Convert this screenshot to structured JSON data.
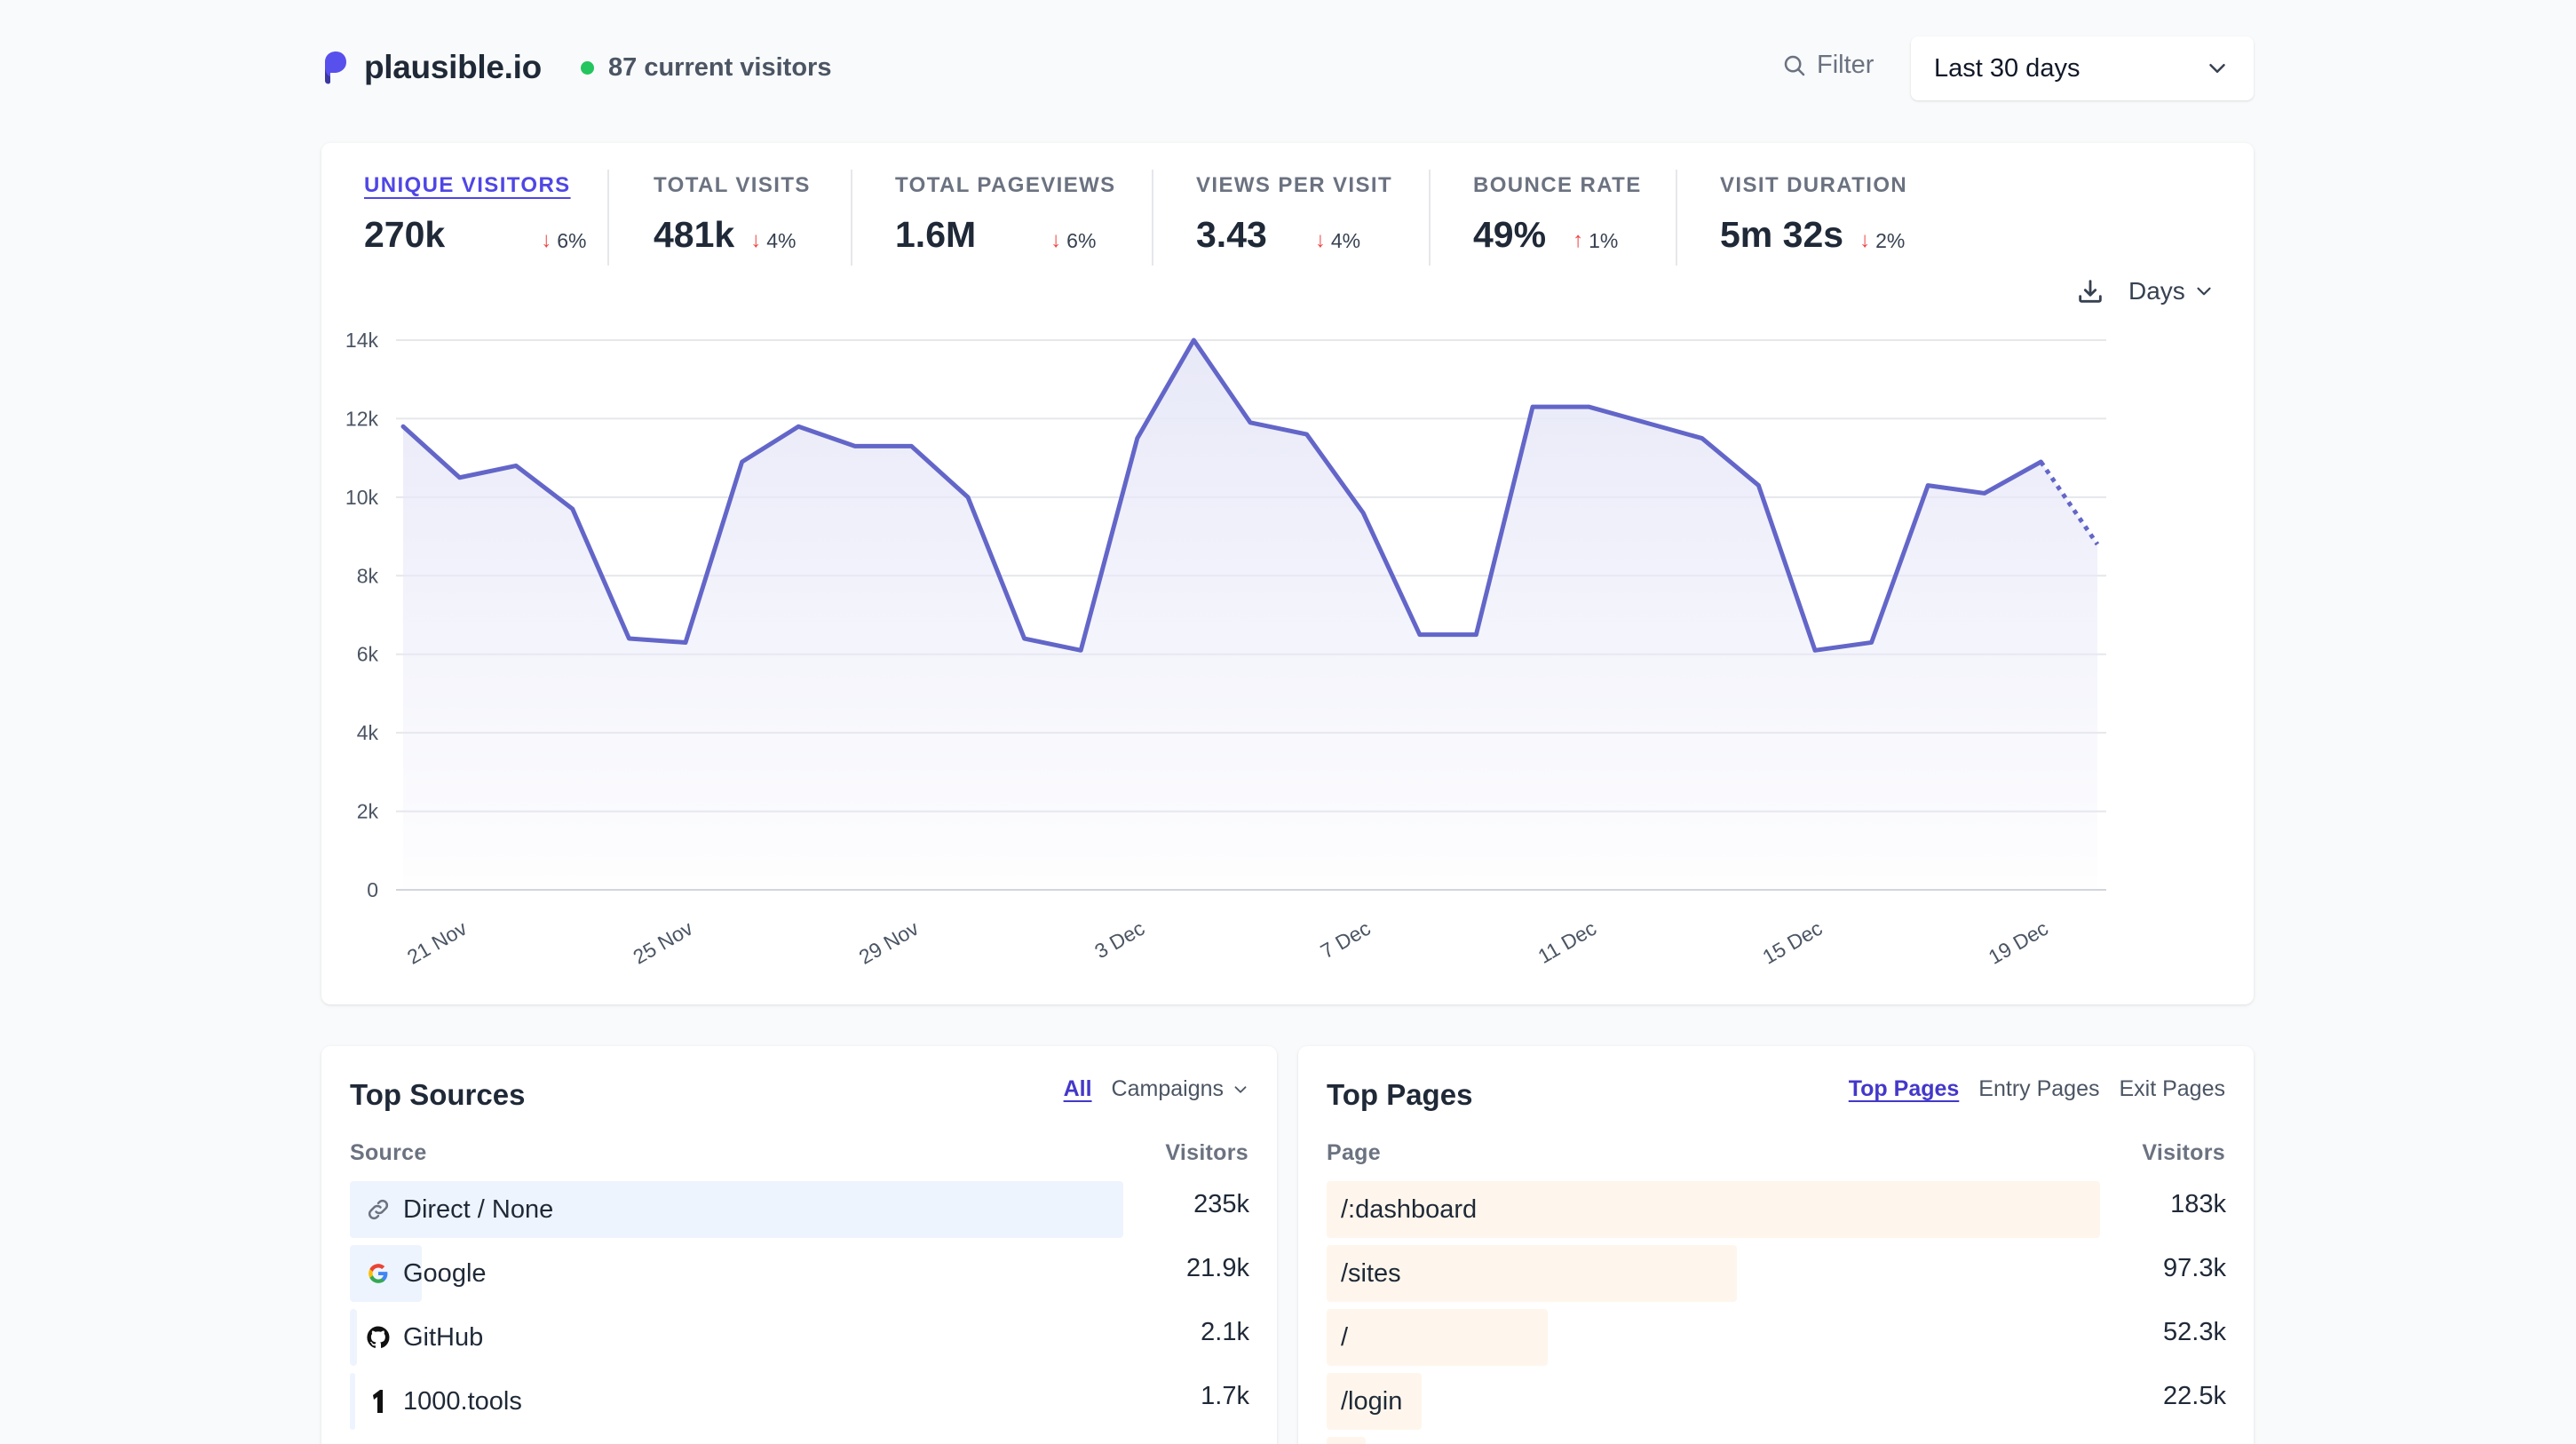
{
  "header": {
    "site_name": "plausible.io",
    "current_visitors": "87 current visitors",
    "filter_label": "Filter",
    "period_label": "Last 30 days"
  },
  "metrics": [
    {
      "label": "UNIQUE VISITORS",
      "value": "270k",
      "change": "6%",
      "direction": "down",
      "active": true
    },
    {
      "label": "TOTAL VISITS",
      "value": "481k",
      "change": "4%",
      "direction": "down"
    },
    {
      "label": "TOTAL PAGEVIEWS",
      "value": "1.6M",
      "change": "6%",
      "direction": "down"
    },
    {
      "label": "VIEWS PER VISIT",
      "value": "3.43",
      "change": "4%",
      "direction": "down"
    },
    {
      "label": "BOUNCE RATE",
      "value": "49%",
      "change": "1%",
      "direction": "up"
    },
    {
      "label": "VISIT DURATION",
      "value": "5m 32s",
      "change": "2%",
      "direction": "down"
    }
  ],
  "chart_controls": {
    "interval_label": "Days",
    "download_icon": "download-icon"
  },
  "chart_data": {
    "type": "area",
    "x": [
      "20 Nov",
      "21 Nov",
      "22 Nov",
      "23 Nov",
      "24 Nov",
      "25 Nov",
      "26 Nov",
      "27 Nov",
      "28 Nov",
      "29 Nov",
      "30 Nov",
      "1 Dec",
      "2 Dec",
      "3 Dec",
      "4 Dec",
      "5 Dec",
      "6 Dec",
      "7 Dec",
      "8 Dec",
      "9 Dec",
      "10 Dec",
      "11 Dec",
      "12 Dec",
      "13 Dec",
      "14 Dec",
      "15 Dec",
      "16 Dec",
      "17 Dec",
      "18 Dec",
      "19 Dec",
      "20 Dec"
    ],
    "tick_labels": [
      "21 Nov",
      "25 Nov",
      "29 Nov",
      "3 Dec",
      "7 Dec",
      "11 Dec",
      "15 Dec",
      "19 Dec"
    ],
    "values": [
      11800,
      10500,
      10800,
      9700,
      6400,
      6300,
      10900,
      11800,
      11300,
      11300,
      10000,
      6400,
      6100,
      11500,
      14000,
      11900,
      11600,
      9600,
      6500,
      6500,
      12300,
      12300,
      11900,
      11500,
      10300,
      6100,
      6300,
      10300,
      10100,
      10900,
      8800
    ],
    "partial_last": true,
    "y_ticks": [
      "0",
      "2k",
      "4k",
      "6k",
      "8k",
      "10k",
      "12k",
      "14k"
    ],
    "ylim": [
      0,
      14000
    ],
    "grid": true,
    "line_color": "#6366c8",
    "fill_color": "#e8e9f8"
  },
  "top_sources": {
    "title": "Top Sources",
    "tabs": [
      "All",
      "Campaigns"
    ],
    "col_label": "Source",
    "col_value": "Visitors",
    "rows": [
      {
        "label": "Direct / None",
        "value": "235k",
        "icon": "link-icon",
        "share": 1.0
      },
      {
        "label": "Google",
        "value": "21.9k",
        "icon": "google-icon",
        "share": 0.093
      },
      {
        "label": "GitHub",
        "value": "2.1k",
        "icon": "github-icon",
        "share": 0.009
      },
      {
        "label": "1000.tools",
        "value": "1.7k",
        "icon": "thousand-tools-icon",
        "share": 0.007
      }
    ],
    "bar_color": "#eef4fd"
  },
  "top_pages": {
    "title": "Top Pages",
    "tabs": [
      "Top Pages",
      "Entry Pages",
      "Exit Pages"
    ],
    "col_label": "Page",
    "col_value": "Visitors",
    "rows": [
      {
        "label": "/:dashboard",
        "value": "183k",
        "share": 1.0
      },
      {
        "label": "/sites",
        "value": "97.3k",
        "share": 0.53
      },
      {
        "label": "/",
        "value": "52.3k",
        "share": 0.286
      },
      {
        "label": "/login",
        "value": "22.5k",
        "share": 0.123
      }
    ],
    "bar_color": "#fef6ec"
  }
}
